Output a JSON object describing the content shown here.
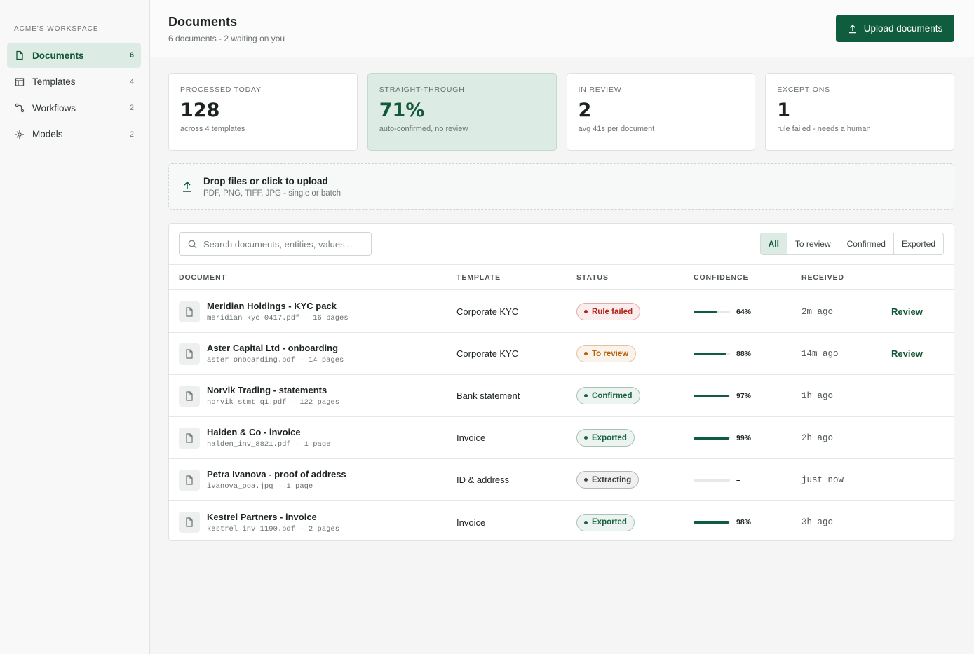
{
  "sidebar": {
    "workspace": "ACME'S WORKSPACE",
    "nav": [
      {
        "label": "Documents",
        "count": "6"
      },
      {
        "label": "Templates",
        "count": "4"
      },
      {
        "label": "Workflows",
        "count": "2"
      },
      {
        "label": "Models",
        "count": "2"
      }
    ]
  },
  "header": {
    "title": "Documents",
    "subtitle": "6 documents - 2 waiting on you",
    "button": "Upload documents"
  },
  "stats": [
    {
      "label": "PROCESSED TODAY",
      "value": "128",
      "note": "across 4 templates"
    },
    {
      "label": "STRAIGHT-THROUGH",
      "value": "71%",
      "note": "auto-confirmed, no review"
    },
    {
      "label": "IN REVIEW",
      "value": "2",
      "note": "avg 41s per document"
    },
    {
      "label": "EXCEPTIONS",
      "value": "1",
      "note": "rule failed - needs a human"
    }
  ],
  "upload": {
    "title": "Drop files or click to upload",
    "note": "PDF, PNG, TIFF, JPG - single or batch"
  },
  "table": {
    "search_placeholder": "Search documents, entities, values...",
    "filters": [
      "All",
      "To review",
      "Confirmed",
      "Exported"
    ],
    "columns": [
      "DOCUMENT",
      "TEMPLATE",
      "STATUS",
      "CONFIDENCE",
      "RECEIVED"
    ],
    "confidence_range": [
      0,
      100
    ],
    "rows": [
      {
        "name": "Meridian Holdings - KYC pack",
        "file": "meridian_kyc_0417.pdf – 16 pages",
        "template": "Corporate KYC",
        "status": "Rule failed",
        "status_color": "#b42318",
        "confidence": {
          "value": 64,
          "label": "64%"
        },
        "received": "2m ago",
        "action": "Review"
      },
      {
        "name": "Aster Capital Ltd - onboarding",
        "file": "aster_onboarding.pdf – 14 pages",
        "template": "Corporate KYC",
        "status": "To review",
        "status_color": "#b5600a",
        "confidence": {
          "value": 88,
          "label": "88%"
        },
        "received": "14m ago",
        "action": "Review"
      },
      {
        "name": "Norvik Trading - statements",
        "file": "norvik_stmt_q1.pdf – 122 pages",
        "template": "Bank statement",
        "status": "Confirmed",
        "status_color": "#17643f",
        "confidence": {
          "value": 97,
          "label": "97%"
        },
        "received": "1h ago"
      },
      {
        "name": "Halden & Co - invoice",
        "file": "halden_inv_8821.pdf – 1 page",
        "template": "Invoice",
        "status": "Exported",
        "status_color": "#17643f",
        "confidence": {
          "value": 99,
          "label": "99%"
        },
        "received": "2h ago"
      },
      {
        "name": "Petra Ivanova - proof of address",
        "file": "ivanova_poa.jpg – 1 page",
        "template": "ID & address",
        "status": "Extracting",
        "status_color": "#3f4642",
        "confidence": {
          "value": null,
          "label": "–"
        },
        "received": "just now"
      },
      {
        "name": "Kestrel Partners - invoice",
        "file": "kestrel_inv_1190.pdf – 2 pages",
        "template": "Invoice",
        "status": "Exported",
        "status_color": "#17643f",
        "confidence": {
          "value": 98,
          "label": "98%"
        },
        "received": "3h ago"
      }
    ]
  }
}
